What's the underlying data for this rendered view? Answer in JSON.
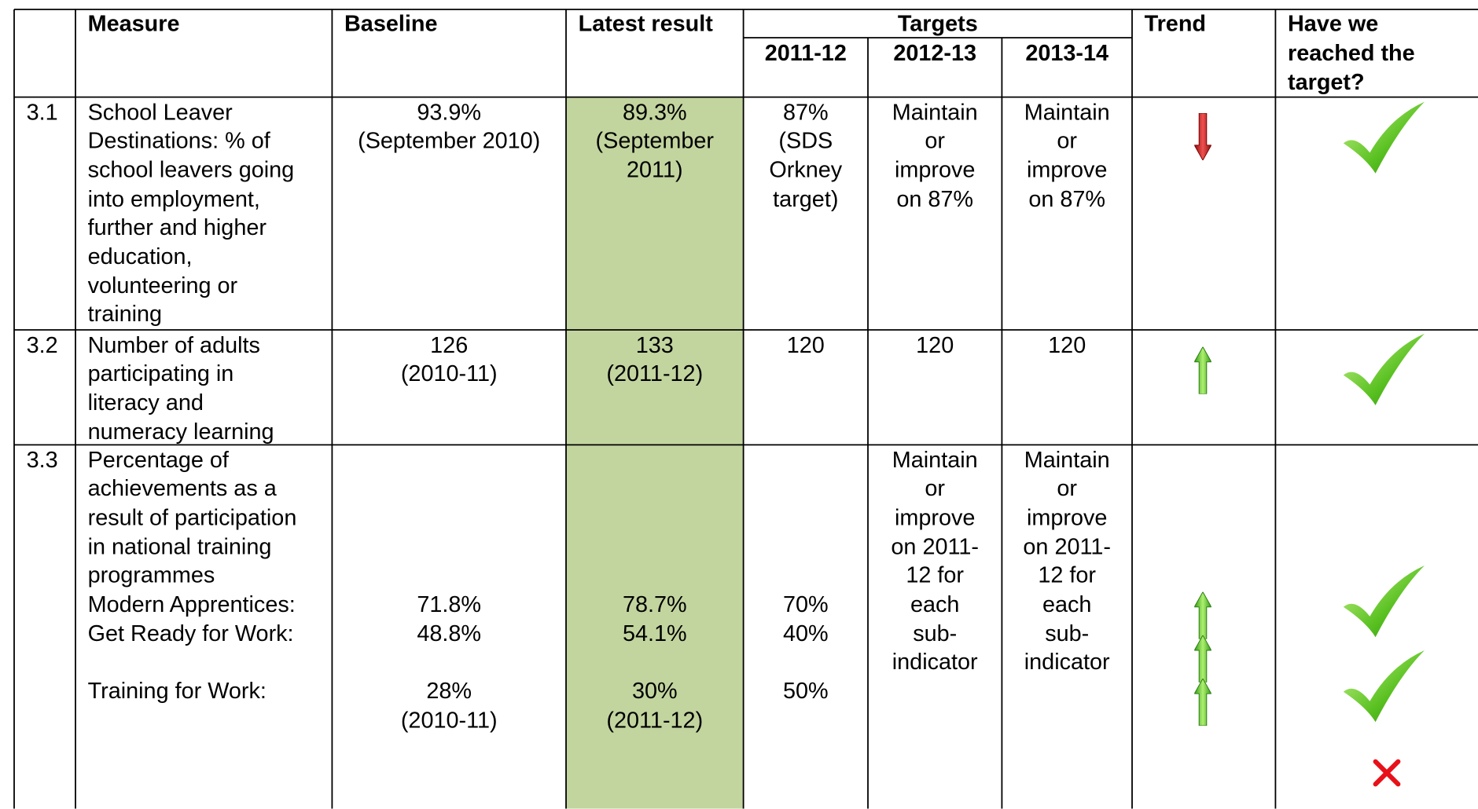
{
  "header": {
    "measure": "Measure",
    "baseline": "Baseline",
    "latest": "Latest result",
    "targets": "Targets",
    "target_years": [
      "2011-12",
      "2012-13",
      "2013-14"
    ],
    "trend": "Trend",
    "reached": [
      "Have we",
      "reached the",
      "target?"
    ]
  },
  "rows": [
    {
      "number": "3.1",
      "measure": [
        "School Leaver",
        "Destinations: % of",
        "school leavers going",
        "into employment,",
        "further and higher",
        "education,",
        "volunteering or",
        "training"
      ],
      "baseline": [
        "93.9%",
        "(September 2010)"
      ],
      "latest": [
        "89.3%",
        "(September",
        "2011)"
      ],
      "targets": [
        [
          "87%",
          "(SDS",
          "Orkney",
          "target)"
        ],
        [
          "Maintain",
          "or",
          "improve",
          "on 87%"
        ],
        [
          "Maintain",
          "or",
          "improve",
          "on 87%"
        ]
      ]
    },
    {
      "number": "3.2",
      "measure": [
        "Number of adults",
        "participating in",
        "literacy and",
        "numeracy learning"
      ],
      "baseline": [
        "126",
        "(2010-11)"
      ],
      "latest": [
        "133",
        "(2011-12)"
      ],
      "targets": [
        [
          "120"
        ],
        [
          "120"
        ],
        [
          "120"
        ]
      ]
    },
    {
      "number": "3.3",
      "measure": [
        "Percentage of",
        "achievements as a",
        "result of participation",
        "in national training",
        "programmes"
      ],
      "sub_indicators": [
        {
          "name": "Modern Apprentices:",
          "baseline": [
            "71.8%"
          ],
          "latest": [
            "78.7%"
          ],
          "target": "70%"
        },
        {
          "name": "Get Ready for Work:",
          "baseline": [
            "48.8%"
          ],
          "latest": [
            "54.1%"
          ],
          "target": "40%"
        },
        {
          "name": "Training for Work:",
          "baseline": [
            "28%",
            "(2010-11)"
          ],
          "latest": [
            "30%",
            "(2011-12)"
          ],
          "target": "50%"
        }
      ],
      "targets": [
        null,
        [
          "Maintain",
          "or",
          "improve",
          "on 2011-",
          "12 for",
          "each",
          "sub-",
          "indicator"
        ],
        [
          "Maintain",
          "or",
          "improve",
          "on 2011-",
          "12 for",
          "each",
          "sub-",
          "indicator"
        ]
      ]
    }
  ]
}
